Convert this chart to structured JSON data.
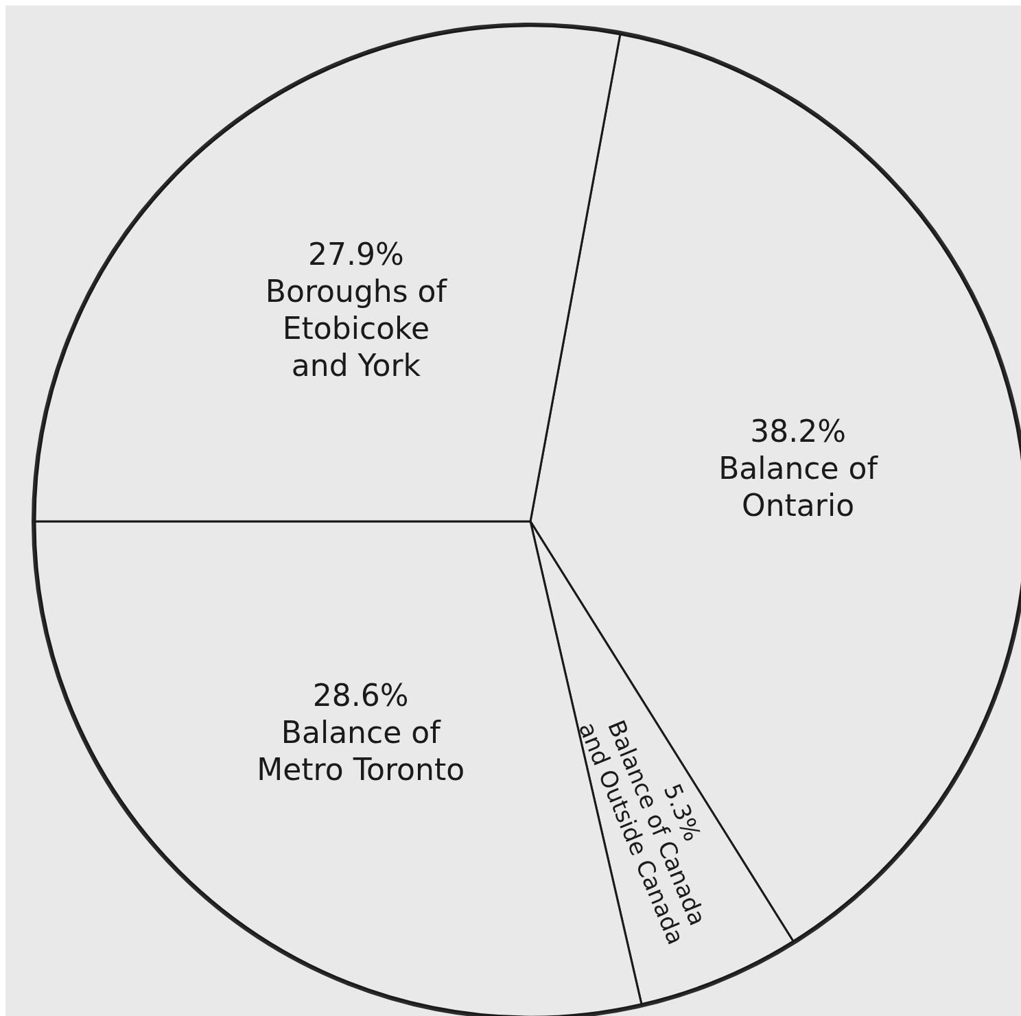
{
  "chart_data": {
    "type": "pie",
    "categories": [
      "Balance of\nOntario",
      "Balance of Canada\nand Outside Canada",
      "Balance of\nMetro Toronto",
      "Boroughs of\nEtobicoke\nand York"
    ],
    "values": [
      38.2,
      5.3,
      28.6,
      27.9
    ],
    "value_labels": [
      "38.2%",
      "5.3%",
      "28.6%",
      "27.9%"
    ],
    "colors": [
      "#e9e9e9",
      "#e9e9e9",
      "#e9e9e9",
      "#e9e9e9"
    ]
  }
}
